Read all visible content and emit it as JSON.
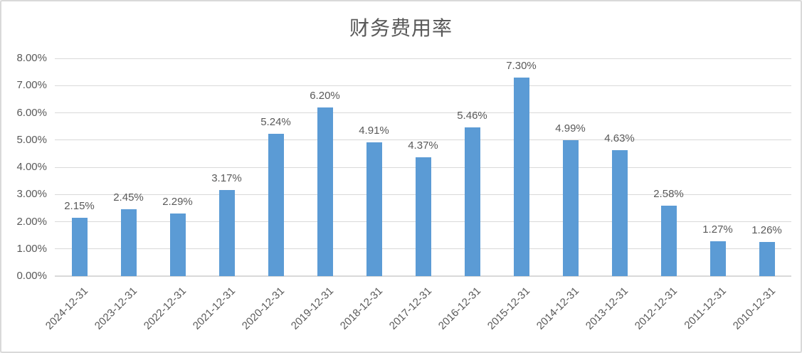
{
  "chart_data": {
    "type": "bar",
    "title": "财务费用率",
    "categories": [
      "2024-12-31",
      "2023-12-31",
      "2022-12-31",
      "2021-12-31",
      "2020-12-31",
      "2019-12-31",
      "2018-12-31",
      "2017-12-31",
      "2016-12-31",
      "2015-12-31",
      "2014-12-31",
      "2013-12-31",
      "2012-12-31",
      "2011-12-31",
      "2010-12-31"
    ],
    "values": [
      2.15,
      2.45,
      2.29,
      3.17,
      5.24,
      6.2,
      4.91,
      4.37,
      5.46,
      7.3,
      4.99,
      4.63,
      2.58,
      1.27,
      1.26
    ],
    "value_labels": [
      "2.15%",
      "2.45%",
      "2.29%",
      "3.17%",
      "5.24%",
      "6.20%",
      "4.91%",
      "4.37%",
      "5.46%",
      "7.30%",
      "4.99%",
      "4.63%",
      "2.58%",
      "1.27%",
      "1.26%"
    ],
    "y_ticks": [
      "0.00%",
      "1.00%",
      "2.00%",
      "3.00%",
      "4.00%",
      "5.00%",
      "6.00%",
      "7.00%",
      "8.00%"
    ],
    "ylim": [
      0,
      8
    ],
    "xlabel": "",
    "ylabel": "",
    "grid": true,
    "legend_position": "none",
    "colors": {
      "bar": "#5b9bd5",
      "text": "#595959",
      "gridline": "#d9d9d9",
      "axis": "#d9d9d9",
      "frame_border": "#d9d9d9",
      "background": "#ffffff"
    }
  }
}
